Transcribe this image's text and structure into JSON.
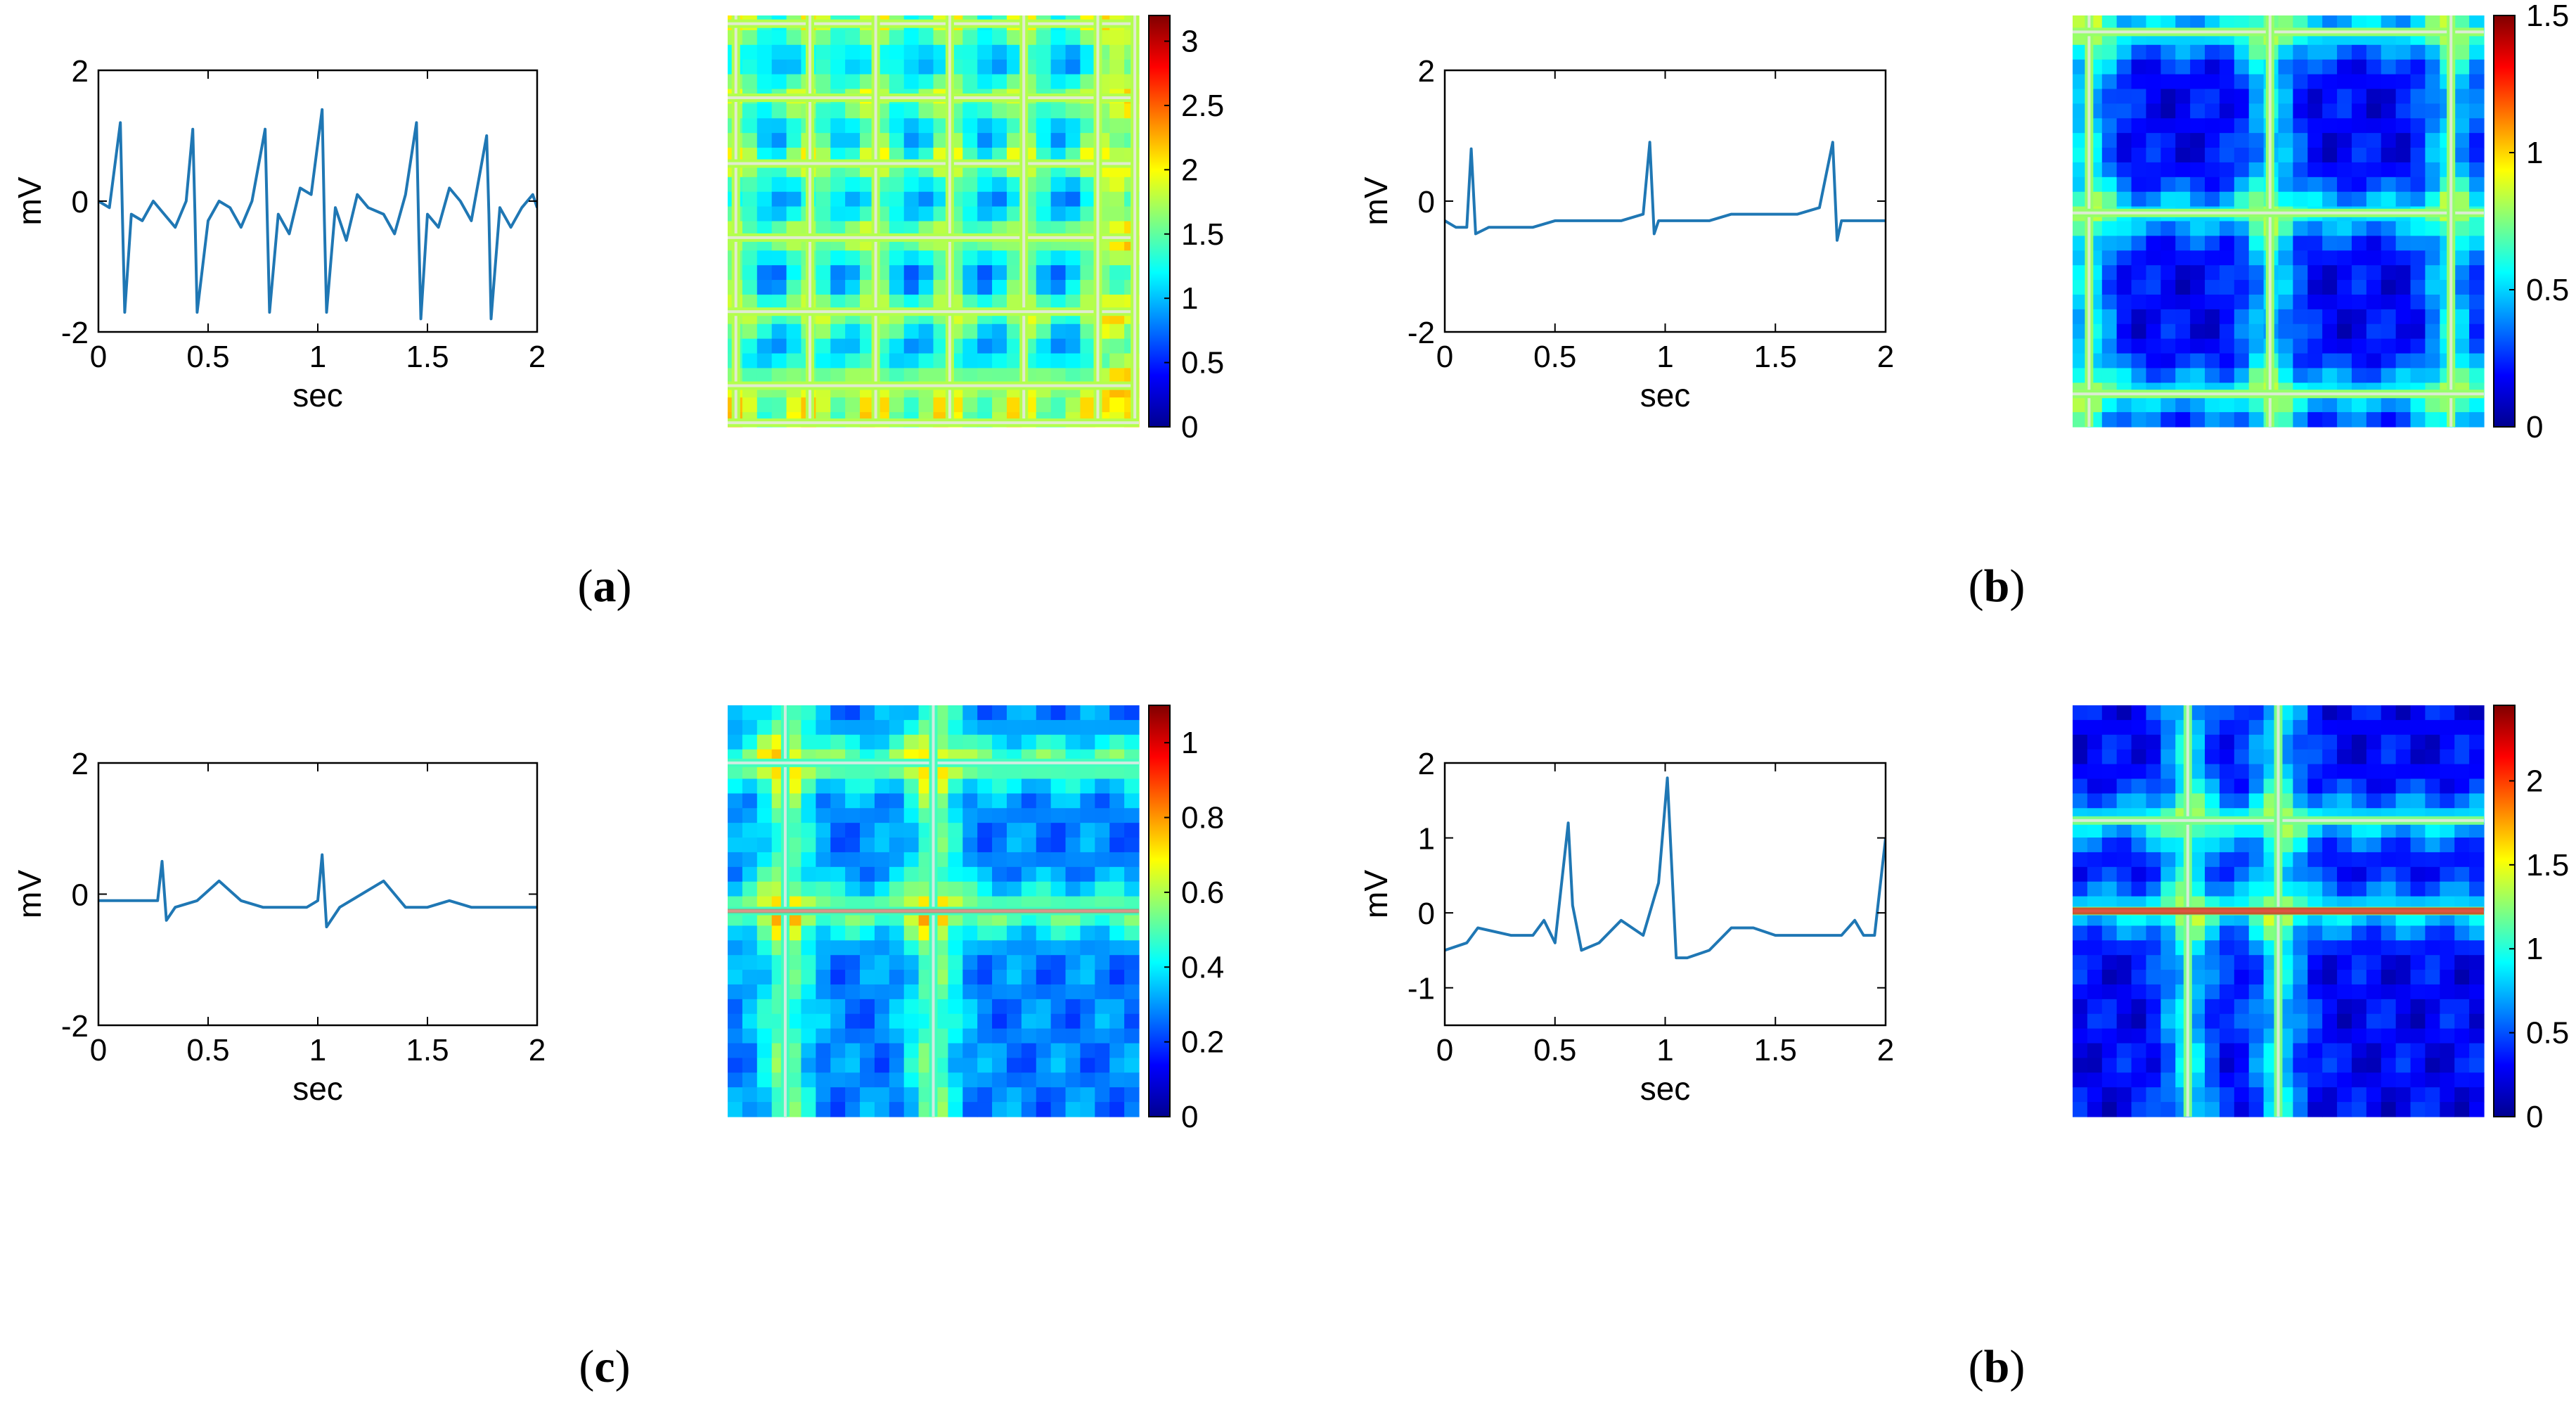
{
  "chart_data": [
    {
      "type": "line",
      "panel": "(a)",
      "xlabel": "sec",
      "ylabel": "mV",
      "xlim": [
        0,
        2
      ],
      "ylim": [
        -2,
        2
      ],
      "xticks": [
        "0",
        "0.5",
        "1",
        "1.5",
        "2"
      ],
      "yticks": [
        "2",
        "0",
        "-2"
      ],
      "color": "#1f77b4",
      "series": [
        {
          "x": [
            0,
            0.05,
            0.1,
            0.11,
            0.12,
            0.15,
            0.2,
            0.25,
            0.3,
            0.35,
            0.4,
            0.43,
            0.44,
            0.45,
            0.5,
            0.55,
            0.6,
            0.65,
            0.7,
            0.76,
            0.77,
            0.78,
            0.82,
            0.87,
            0.92,
            0.97,
            1.02,
            1.03,
            1.04,
            1.08,
            1.13,
            1.18,
            1.23,
            1.3,
            1.35,
            1.4,
            1.45,
            1.46,
            1.47,
            1.5,
            1.55,
            1.6,
            1.65,
            1.7,
            1.77,
            1.78,
            1.79,
            1.83,
            1.88,
            1.93,
            1.98,
            2.0
          ],
          "y": [
            0,
            -0.1,
            1.2,
            -0.3,
            -1.7,
            -0.2,
            -0.3,
            0.0,
            -0.2,
            -0.4,
            0.0,
            1.1,
            -0.2,
            -1.7,
            -0.3,
            0.0,
            -0.1,
            -0.4,
            0.0,
            1.1,
            -0.3,
            -1.7,
            -0.2,
            -0.5,
            0.2,
            0.1,
            1.4,
            -0.3,
            -1.7,
            -0.1,
            -0.6,
            0.1,
            -0.1,
            -0.2,
            -0.5,
            0.1,
            1.2,
            -0.4,
            -1.8,
            -0.2,
            -0.4,
            0.2,
            0.0,
            -0.3,
            1.0,
            -0.2,
            -1.8,
            -0.1,
            -0.4,
            -0.1,
            0.1,
            -0.1
          ]
        }
      ]
    },
    {
      "type": "heatmap",
      "panel": "(a)",
      "colorbar_ticks": [
        "3",
        "2.5",
        "2",
        "1.5",
        "1",
        "0.5",
        "0"
      ],
      "colorbar_range": [
        0,
        3.2
      ],
      "colormap": "jet",
      "line_positions": [
        0.02,
        0.2,
        0.36,
        0.54,
        0.72,
        0.9,
        0.99
      ],
      "line_intensity": 1.0,
      "background_level": 0.15
    },
    {
      "type": "line",
      "panel": "(b)",
      "xlabel": "sec",
      "ylabel": "mV",
      "xlim": [
        0,
        2
      ],
      "ylim": [
        -2,
        2
      ],
      "xticks": [
        "0",
        "0.5",
        "1",
        "1.5",
        "2"
      ],
      "yticks": [
        "2",
        "0",
        "-2"
      ],
      "color": "#1f77b4",
      "series": [
        {
          "x": [
            0,
            0.05,
            0.1,
            0.12,
            0.14,
            0.2,
            0.3,
            0.4,
            0.5,
            0.6,
            0.7,
            0.8,
            0.9,
            0.93,
            0.95,
            0.97,
            1.0,
            1.1,
            1.2,
            1.3,
            1.4,
            1.5,
            1.6,
            1.7,
            1.76,
            1.78,
            1.8,
            1.85,
            1.9,
            2.0
          ],
          "y": [
            -0.3,
            -0.4,
            -0.4,
            0.8,
            -0.5,
            -0.4,
            -0.4,
            -0.4,
            -0.3,
            -0.3,
            -0.3,
            -0.3,
            -0.2,
            0.9,
            -0.5,
            -0.3,
            -0.3,
            -0.3,
            -0.3,
            -0.2,
            -0.2,
            -0.2,
            -0.2,
            -0.1,
            0.9,
            -0.6,
            -0.3,
            -0.3,
            -0.3,
            -0.3
          ]
        }
      ]
    },
    {
      "type": "heatmap",
      "panel": "(b)",
      "colorbar_ticks": [
        "1.5",
        "1",
        "0.5",
        "0"
      ],
      "colorbar_range": [
        0,
        1.5
      ],
      "colormap": "jet",
      "line_positions": [
        0.04,
        0.48,
        0.92
      ],
      "line_intensity": 0.95,
      "background_level": 0.12
    },
    {
      "type": "line",
      "panel": "(c)",
      "xlabel": "sec",
      "ylabel": "mV",
      "xlim": [
        0,
        2
      ],
      "ylim": [
        -2,
        2
      ],
      "xticks": [
        "0",
        "0.5",
        "1",
        "1.5",
        "2"
      ],
      "yticks": [
        "2",
        "0",
        "-2"
      ],
      "color": "#1f77b4",
      "series": [
        {
          "x": [
            0,
            0.1,
            0.2,
            0.27,
            0.29,
            0.31,
            0.35,
            0.45,
            0.55,
            0.65,
            0.75,
            0.85,
            0.95,
            1.0,
            1.02,
            1.04,
            1.1,
            1.2,
            1.3,
            1.4,
            1.5,
            1.6,
            1.7,
            1.8,
            1.9,
            2.0
          ],
          "y": [
            -0.1,
            -0.1,
            -0.1,
            -0.1,
            0.5,
            -0.4,
            -0.2,
            -0.1,
            0.2,
            -0.1,
            -0.2,
            -0.2,
            -0.2,
            -0.1,
            0.6,
            -0.5,
            -0.2,
            0.0,
            0.2,
            -0.2,
            -0.2,
            -0.1,
            -0.2,
            -0.2,
            -0.2,
            -0.2
          ]
        }
      ]
    },
    {
      "type": "heatmap",
      "panel": "(c)",
      "colorbar_ticks": [
        "1",
        "0.8",
        "0.6",
        "0.4",
        "0.2",
        "0"
      ],
      "colorbar_range": [
        0,
        1.1
      ],
      "colormap": "jet",
      "line_positions": [
        0.14,
        0.5
      ],
      "line_intensity": 0.8,
      "background_level": 0.25
    },
    {
      "type": "line",
      "panel": "(b)",
      "xlabel": "sec",
      "ylabel": "mV",
      "xlim": [
        0,
        2
      ],
      "ylim": [
        -1.5,
        2
      ],
      "xticks": [
        "0",
        "0.5",
        "1",
        "1.5",
        "2"
      ],
      "yticks": [
        "2",
        "1",
        "0",
        "-1"
      ],
      "color": "#1f77b4",
      "series": [
        {
          "x": [
            0,
            0.1,
            0.15,
            0.3,
            0.4,
            0.45,
            0.5,
            0.56,
            0.58,
            0.62,
            0.7,
            0.8,
            0.9,
            0.97,
            1.01,
            1.05,
            1.1,
            1.2,
            1.3,
            1.4,
            1.5,
            1.6,
            1.7,
            1.8,
            1.86,
            1.9,
            1.95,
            2.0
          ],
          "y": [
            -0.5,
            -0.4,
            -0.2,
            -0.3,
            -0.3,
            -0.1,
            -0.4,
            1.2,
            0.1,
            -0.5,
            -0.4,
            -0.1,
            -0.3,
            0.4,
            1.8,
            -0.6,
            -0.6,
            -0.5,
            -0.2,
            -0.2,
            -0.3,
            -0.3,
            -0.3,
            -0.3,
            -0.1,
            -0.3,
            -0.3,
            1.0
          ]
        }
      ]
    },
    {
      "type": "heatmap",
      "panel": "(b)",
      "colorbar_ticks": [
        "2",
        "1.5",
        "1",
        "0.5",
        "0"
      ],
      "colorbar_range": [
        0,
        2.45
      ],
      "colormap": "jet",
      "line_positions": [
        0.28,
        0.5
      ],
      "line_intensity": 0.9,
      "background_level": 0.12
    }
  ],
  "panel_labels": [
    "a",
    "b",
    "c",
    "b"
  ]
}
